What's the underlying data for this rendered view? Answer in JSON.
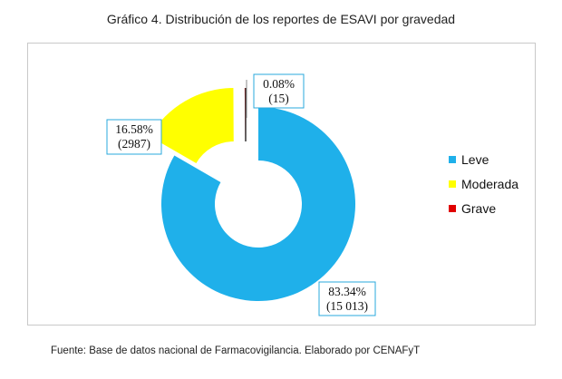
{
  "title": "Gráfico 4. Distribución de los reportes de ESAVI por gravedad",
  "source": "Fuente: Base de datos nacional de Farmacovigilancia. Elaborado por CENAFyT",
  "chart_data": {
    "type": "pie",
    "variant": "doughnut-exploded",
    "categories": [
      "Leve",
      "Moderada",
      "Grave"
    ],
    "values": [
      15013,
      2987,
      15
    ],
    "percentages": [
      83.34,
      16.58,
      0.08
    ],
    "labels": [
      {
        "pct": "83.34%",
        "count": "(15 013)"
      },
      {
        "pct": "16.58%",
        "count": "(2987)"
      },
      {
        "pct": "0.08%",
        "count": "(15)"
      }
    ],
    "colors": [
      "#1fb0ea",
      "#ffff00",
      "#e00000"
    ],
    "legend": {
      "placement": "right",
      "entries": [
        "Leve",
        "Moderada",
        "Grave"
      ]
    }
  }
}
